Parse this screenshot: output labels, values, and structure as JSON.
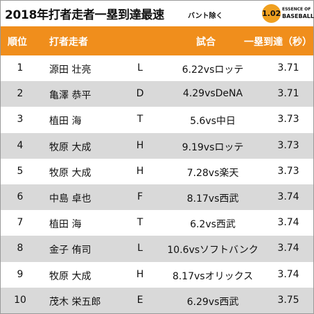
{
  "title": "2018年打者走者一塁到達最速",
  "subtitle": "バント除く",
  "logo": {
    "number": "1.02",
    "line1": "ESSENCE OF",
    "line2": "BASEBALL"
  },
  "columns": {
    "rank": "順位",
    "name": "打者走者",
    "game": "試合",
    "time": "一塁到達（秒）"
  },
  "rows": [
    {
      "rank": "1",
      "name": "源田 壮亮",
      "team": "L",
      "game": "6.22vsロッテ",
      "time": "3.71"
    },
    {
      "rank": "2",
      "name": "亀澤 恭平",
      "team": "D",
      "game": "4.29vsDeNA",
      "time": "3.71"
    },
    {
      "rank": "3",
      "name": "植田 海",
      "team": "T",
      "game": "5.6vs中日",
      "time": "3.73"
    },
    {
      "rank": "4",
      "name": "牧原 大成",
      "team": "H",
      "game": "9.19vsロッテ",
      "time": "3.73"
    },
    {
      "rank": "5",
      "name": "牧原 大成",
      "team": "H",
      "game": "7.28vs楽天",
      "time": "3.73"
    },
    {
      "rank": "6",
      "name": "中島 卓也",
      "team": "F",
      "game": "8.17vs西武",
      "time": "3.74"
    },
    {
      "rank": "7",
      "name": "植田 海",
      "team": "T",
      "game": "6.2vs西武",
      "time": "3.74"
    },
    {
      "rank": "8",
      "name": "金子 侑司",
      "team": "L",
      "game": "10.6vsソフトバンク",
      "time": "3.74"
    },
    {
      "rank": "9",
      "name": "牧原 大成",
      "team": "H",
      "game": "8.17vsオリックス",
      "time": "3.74"
    },
    {
      "rank": "10",
      "name": "茂木 栄五郎",
      "team": "E",
      "game": "6.29vs西武",
      "time": "3.75"
    }
  ]
}
